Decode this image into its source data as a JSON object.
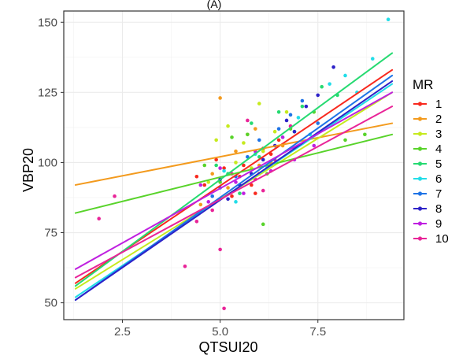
{
  "chart_data": {
    "type": "scatter",
    "title": "(A)",
    "xlabel": "QTSUI20",
    "ylabel": "VBP20",
    "xlim": [
      1.0,
      9.7
    ],
    "ylim": [
      44,
      154
    ],
    "xticks": [
      2.5,
      5.0,
      7.5
    ],
    "xtick_labels": [
      "2.5",
      "5.0",
      "7.5"
    ],
    "yticks": [
      50,
      75,
      100,
      125,
      150
    ],
    "ytick_labels": [
      "50",
      "75",
      "100",
      "125",
      "150"
    ],
    "grid": true,
    "legend": {
      "title": "MR",
      "position": "right"
    },
    "series": [
      {
        "name": "1",
        "color": "#f8291e",
        "line": [
          [
            1.3,
            57
          ],
          [
            9.4,
            133
          ]
        ],
        "points": [
          [
            4.6,
            92
          ],
          [
            5.1,
            98
          ],
          [
            5.5,
            95
          ],
          [
            5.8,
            92
          ],
          [
            6.0,
            96
          ],
          [
            5.9,
            89
          ],
          [
            6.3,
            103
          ],
          [
            4.9,
            101
          ],
          [
            5.3,
            88
          ],
          [
            6.1,
            105
          ],
          [
            5.6,
            99
          ],
          [
            4.4,
            95
          ],
          [
            6.5,
            108
          ]
        ]
      },
      {
        "name": "2",
        "color": "#f39a1d",
        "line": [
          [
            1.3,
            92
          ],
          [
            9.4,
            114
          ]
        ],
        "points": [
          [
            5.0,
            123
          ],
          [
            4.8,
            96
          ],
          [
            5.4,
            104
          ],
          [
            6.0,
            99
          ],
          [
            5.7,
            110
          ],
          [
            6.3,
            100
          ],
          [
            5.2,
            91
          ],
          [
            4.5,
            85
          ],
          [
            6.6,
            106
          ],
          [
            5.9,
            112
          ]
        ]
      },
      {
        "name": "3",
        "color": "#c6ea1d",
        "line": [
          [
            1.3,
            55
          ],
          [
            9.4,
            125
          ]
        ],
        "points": [
          [
            5.6,
            107
          ],
          [
            5.2,
            113
          ],
          [
            6.1,
            104
          ],
          [
            4.9,
            108
          ],
          [
            5.8,
            98
          ],
          [
            6.4,
            111
          ],
          [
            5.4,
            100
          ],
          [
            4.7,
            93
          ],
          [
            6.7,
            118
          ],
          [
            6.0,
            121
          ]
        ]
      },
      {
        "name": "4",
        "color": "#58d32a",
        "line": [
          [
            1.3,
            82
          ],
          [
            9.4,
            110
          ]
        ],
        "points": [
          [
            8.2,
            108
          ],
          [
            8.7,
            110
          ],
          [
            5.7,
            110
          ],
          [
            6.2,
            96
          ],
          [
            4.6,
            99
          ],
          [
            5.3,
            109
          ],
          [
            6.8,
            112
          ],
          [
            7.4,
            118
          ],
          [
            5.0,
            93
          ],
          [
            6.1,
            78
          ]
        ]
      },
      {
        "name": "5",
        "color": "#26da71",
        "line": [
          [
            1.3,
            56
          ],
          [
            9.4,
            139
          ]
        ],
        "points": [
          [
            5.8,
            114
          ],
          [
            6.5,
            118
          ],
          [
            5.2,
            96
          ],
          [
            7.1,
            120
          ],
          [
            4.9,
            99
          ],
          [
            6.0,
            102
          ],
          [
            7.6,
            127
          ],
          [
            5.5,
            89
          ],
          [
            6.9,
            111
          ],
          [
            8.0,
            124
          ]
        ]
      },
      {
        "name": "6",
        "color": "#22dde8",
        "line": [
          [
            1.3,
            52
          ],
          [
            9.4,
            128
          ]
        ],
        "points": [
          [
            9.3,
            151
          ],
          [
            8.9,
            137
          ],
          [
            8.2,
            131
          ],
          [
            7.8,
            128
          ],
          [
            7.0,
            116
          ],
          [
            6.6,
            109
          ],
          [
            6.2,
            98
          ],
          [
            5.9,
            103
          ],
          [
            5.4,
            86
          ],
          [
            5.1,
            97
          ],
          [
            7.3,
            110
          ],
          [
            8.5,
            125
          ]
        ]
      },
      {
        "name": "7",
        "color": "#1e73e6",
        "line": [
          [
            1.3,
            51
          ],
          [
            9.4,
            131
          ]
        ],
        "points": [
          [
            7.1,
            122
          ],
          [
            6.8,
            117
          ],
          [
            6.5,
            112
          ],
          [
            6.0,
            108
          ],
          [
            5.7,
            102
          ],
          [
            5.4,
            95
          ],
          [
            5.0,
            91
          ],
          [
            6.3,
            99
          ],
          [
            7.5,
            114
          ],
          [
            4.8,
            88
          ],
          [
            6.9,
            105
          ]
        ]
      },
      {
        "name": "8",
        "color": "#2d22c8",
        "line": [
          [
            1.3,
            51
          ],
          [
            9.4,
            129
          ]
        ],
        "points": [
          [
            7.9,
            134
          ],
          [
            7.5,
            124
          ],
          [
            7.2,
            120
          ],
          [
            6.7,
            115
          ],
          [
            6.4,
            106
          ],
          [
            6.1,
            101
          ],
          [
            5.8,
            96
          ],
          [
            5.5,
            92
          ],
          [
            5.2,
            87
          ],
          [
            6.9,
            111
          ],
          [
            5.0,
            94
          ]
        ]
      },
      {
        "name": "9",
        "color": "#bf1fe0",
        "line": [
          [
            1.3,
            62
          ],
          [
            9.4,
            125
          ]
        ],
        "points": [
          [
            6.9,
            101
          ],
          [
            6.3,
            97
          ],
          [
            5.9,
            104
          ],
          [
            5.4,
            93
          ],
          [
            5.0,
            98
          ],
          [
            4.7,
            86
          ],
          [
            6.6,
            109
          ],
          [
            5.6,
            89
          ],
          [
            7.4,
            106
          ],
          [
            4.5,
            92
          ]
        ]
      },
      {
        "name": "10",
        "color": "#e92498",
        "line": [
          [
            1.3,
            59
          ],
          [
            9.4,
            120
          ]
        ],
        "points": [
          [
            2.3,
            88
          ],
          [
            1.9,
            80
          ],
          [
            4.1,
            63
          ],
          [
            5.0,
            69
          ],
          [
            5.1,
            48
          ],
          [
            4.4,
            79
          ],
          [
            4.8,
            83
          ],
          [
            5.3,
            96
          ],
          [
            5.9,
            94
          ],
          [
            6.4,
            101
          ],
          [
            5.7,
            115
          ],
          [
            6.8,
            113
          ],
          [
            6.1,
            90
          ]
        ]
      }
    ]
  }
}
